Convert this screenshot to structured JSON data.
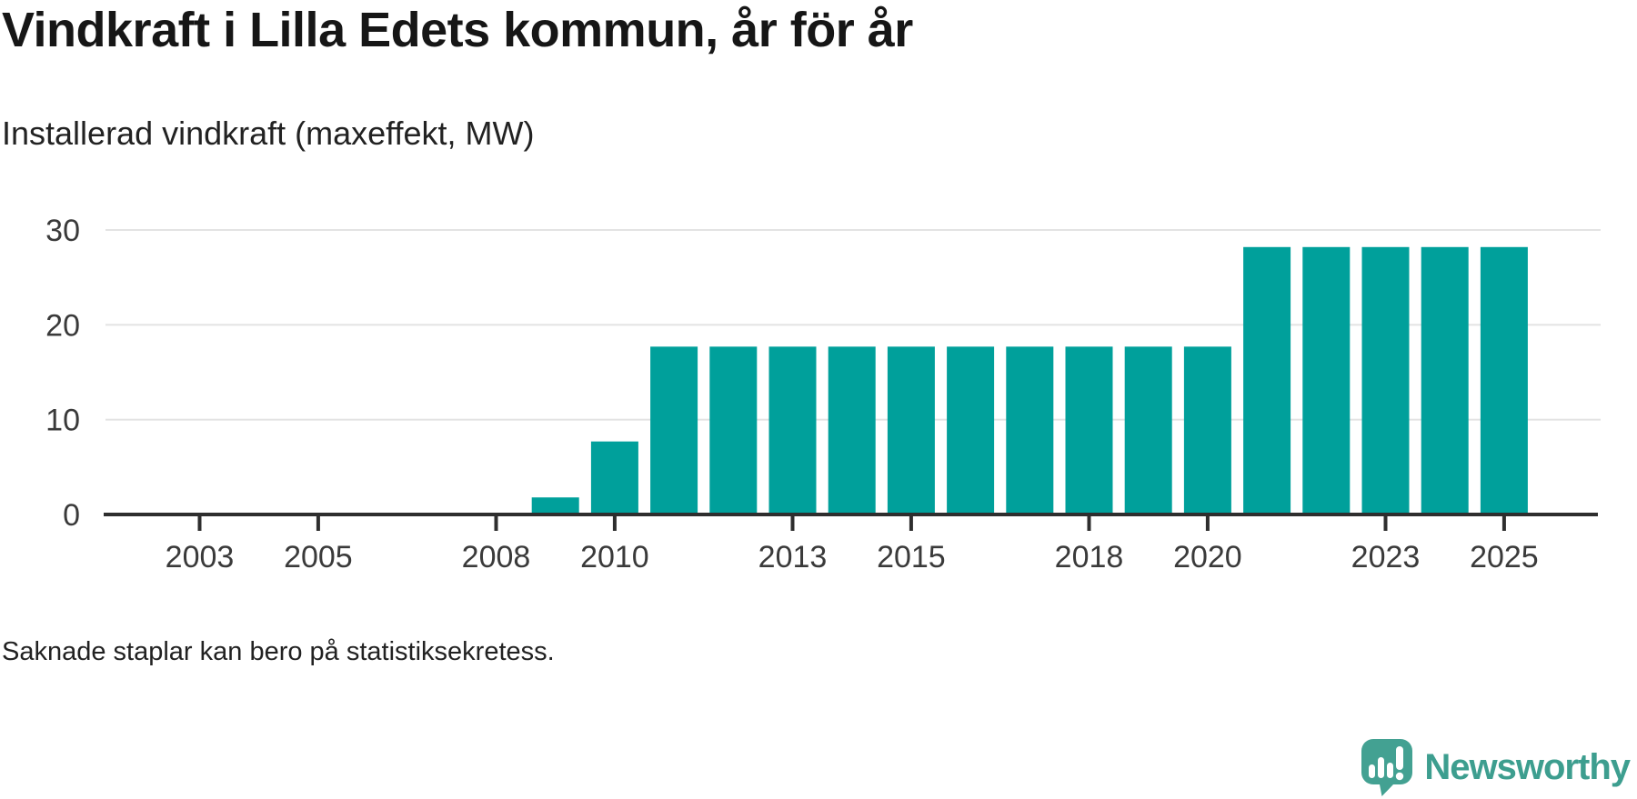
{
  "chart_data": {
    "type": "bar",
    "title": "Vindkraft i Lilla Edets kommun, år för år",
    "subtitle": "Installerad vindkraft (maxeffekt, MW)",
    "footnote": "Saknade staplar kan bero på statistiksekretess.",
    "xlabel": "",
    "ylabel": "",
    "ylim": [
      0,
      30
    ],
    "y_ticks": [
      0,
      10,
      20,
      30
    ],
    "x_tick_labels": [
      "2003",
      "2005",
      "2008",
      "2010",
      "2013",
      "2015",
      "2018",
      "2020",
      "2023",
      "2025"
    ],
    "categories": [
      2002,
      2003,
      2004,
      2005,
      2006,
      2007,
      2008,
      2009,
      2010,
      2011,
      2012,
      2013,
      2014,
      2015,
      2016,
      2017,
      2018,
      2019,
      2020,
      2021,
      2022,
      2023,
      2024,
      2025
    ],
    "values": [
      null,
      null,
      null,
      null,
      null,
      null,
      null,
      1.8,
      7.7,
      17.7,
      17.7,
      17.7,
      17.7,
      17.7,
      17.7,
      17.7,
      17.7,
      17.7,
      17.7,
      28.2,
      28.2,
      28.2,
      28.2,
      28.2
    ],
    "bar_color": "#00a09b",
    "grid": "horizontal",
    "gridline_color": "#e3e3e3",
    "axis_color": "#2e2e2e",
    "tick_label_color": "#3a3a3a",
    "legend": "none"
  },
  "branding": {
    "logo_text": "Newsworthy",
    "logo_color": "#3d9e8f",
    "logo_icon_color": "#43a192",
    "logo_icon": "bar-chart-speech-bubble"
  }
}
